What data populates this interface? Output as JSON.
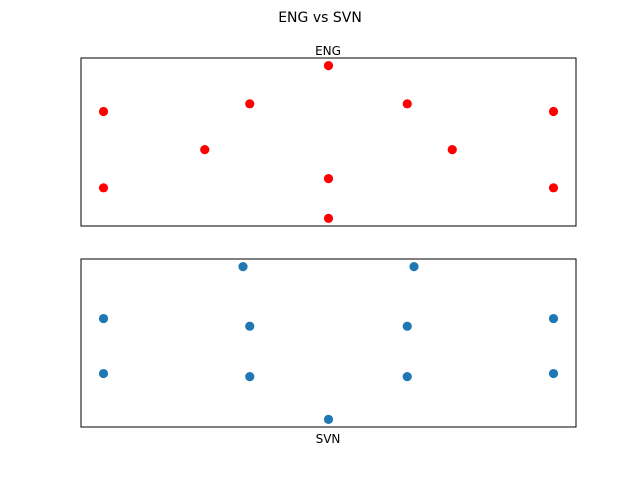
{
  "chart_data": {
    "type": "scatter",
    "title": "ENG vs SVN",
    "panels": [
      {
        "title": "ENG",
        "title_position": "top",
        "color": "#ff0000",
        "xlim": [
          -0.05,
          1.05
        ],
        "ylim": [
          -0.05,
          1.05
        ],
        "axis_ticks": false,
        "points": [
          {
            "x": 0.0,
            "y": 0.7
          },
          {
            "x": 0.0,
            "y": 0.2
          },
          {
            "x": 0.225,
            "y": 0.45
          },
          {
            "x": 0.325,
            "y": 0.75
          },
          {
            "x": 0.5,
            "y": 1.0
          },
          {
            "x": 0.5,
            "y": 0.26
          },
          {
            "x": 0.5,
            "y": 0.0
          },
          {
            "x": 0.675,
            "y": 0.75
          },
          {
            "x": 0.775,
            "y": 0.45
          },
          {
            "x": 1.0,
            "y": 0.7
          },
          {
            "x": 1.0,
            "y": 0.2
          }
        ]
      },
      {
        "title": "SVN",
        "title_position": "bottom",
        "color": "#1f77b4",
        "xlim": [
          -0.05,
          1.05
        ],
        "ylim": [
          -0.05,
          1.05
        ],
        "axis_ticks": false,
        "points": [
          {
            "x": 0.0,
            "y": 0.66
          },
          {
            "x": 0.0,
            "y": 0.3
          },
          {
            "x": 0.31,
            "y": 1.0
          },
          {
            "x": 0.325,
            "y": 0.61
          },
          {
            "x": 0.325,
            "y": 0.28
          },
          {
            "x": 0.5,
            "y": 0.0
          },
          {
            "x": 0.675,
            "y": 0.61
          },
          {
            "x": 0.675,
            "y": 0.28
          },
          {
            "x": 0.69,
            "y": 1.0
          },
          {
            "x": 1.0,
            "y": 0.66
          },
          {
            "x": 1.0,
            "y": 0.3
          }
        ]
      }
    ]
  }
}
